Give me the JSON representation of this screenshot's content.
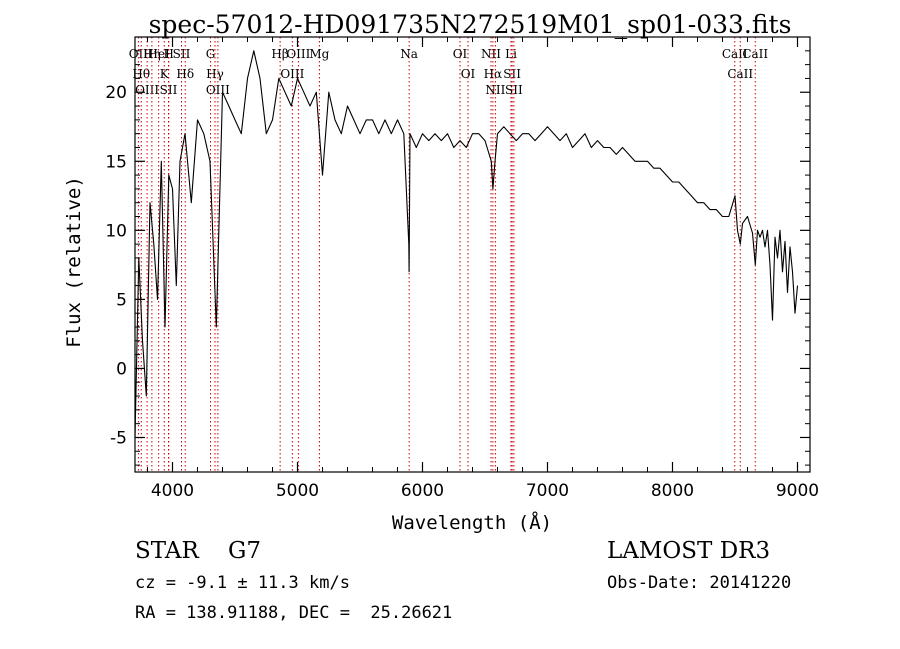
{
  "chart_data": {
    "type": "line",
    "title": "spec-57012-HD091735N272519M01_sp01-033.fits",
    "xlabel": "Wavelength (Å)",
    "ylabel": "Flux (relative)",
    "xlim": [
      3700,
      9100
    ],
    "ylim": [
      -7.5,
      24
    ],
    "xticks": [
      "4000",
      "5000",
      "6000",
      "7000",
      "8000",
      "9000"
    ],
    "yticks": [
      "-5",
      "0",
      "5",
      "10",
      "15",
      "20"
    ],
    "grid": false,
    "legend": "none",
    "line_color": "#000000",
    "marker_color": "#cc0000",
    "series": [
      {
        "x": [
          3700,
          3730,
          3760,
          3790,
          3820,
          3850,
          3880,
          3910,
          3940,
          3970,
          4000,
          4030,
          4060,
          4100,
          4150,
          4200,
          4250,
          4300,
          4350,
          4400,
          4450,
          4500,
          4550,
          4600,
          4650,
          4700,
          4750,
          4800,
          4850,
          4900,
          4950,
          5000,
          5050,
          5100,
          5150,
          5200,
          5250,
          5300,
          5350,
          5400,
          5450,
          5500,
          5550,
          5600,
          5650,
          5700,
          5750,
          5800,
          5850,
          5890,
          5893,
          5900,
          5950,
          6000,
          6050,
          6100,
          6150,
          6200,
          6250,
          6300,
          6350,
          6400,
          6450,
          6500,
          6550,
          6563,
          6580,
          6600,
          6650,
          6700,
          6750,
          6800,
          6850,
          6900,
          6950,
          7000,
          7050,
          7100,
          7150,
          7200,
          7250,
          7300,
          7350,
          7400,
          7450,
          7500,
          7550,
          7600,
          7650,
          7700,
          7750,
          7800,
          7850,
          7900,
          7950,
          8000,
          8050,
          8100,
          8150,
          8200,
          8250,
          8300,
          8350,
          8400,
          8450,
          8500,
          8520,
          8542,
          8560,
          8600,
          8640,
          8662,
          8680,
          8700,
          8720,
          8740,
          8760,
          8780,
          8800,
          8820,
          8840,
          8860,
          8880,
          8900,
          8920,
          8940,
          8960,
          8980,
          9000
        ],
        "y": [
          -5,
          8,
          2,
          -2,
          12,
          9,
          5,
          15,
          3,
          14,
          13,
          6,
          15,
          17,
          12,
          18,
          17,
          15,
          3,
          20,
          19,
          18,
          17,
          21,
          23,
          21,
          17,
          18,
          21,
          20,
          19,
          21,
          20,
          19,
          20,
          14,
          20,
          18,
          17,
          19,
          18,
          17,
          18,
          18,
          17,
          18,
          17,
          18,
          17,
          9,
          7,
          17,
          16,
          17,
          16.5,
          17,
          16.5,
          17,
          16,
          16.5,
          16,
          17,
          17,
          16.5,
          15,
          13,
          15,
          17,
          17.5,
          17,
          16.5,
          17,
          17,
          16.5,
          17,
          17.5,
          17,
          16.5,
          17,
          16,
          16.5,
          17,
          16,
          16.5,
          16,
          16,
          15.5,
          16,
          15.5,
          15,
          15,
          15,
          14.5,
          14.5,
          14,
          13.5,
          13.5,
          13,
          12.5,
          12,
          12,
          11.5,
          11.5,
          11,
          11,
          12.5,
          10,
          9,
          10.5,
          11,
          9.8,
          7.5,
          10,
          9.5,
          10,
          8.8,
          10,
          7.5,
          3.5,
          9.5,
          8,
          10,
          7,
          9.2,
          5.5,
          8.8,
          7,
          4,
          6
        ]
      }
    ],
    "line_markers": [
      {
        "x": 3727,
        "label": "OII"
      },
      {
        "x": 3750,
        "label": "Hθ"
      },
      {
        "x": 3797,
        "label": "OIII"
      },
      {
        "x": 3835,
        "label": "Hη"
      },
      {
        "x": 3889,
        "label": "HeI"
      },
      {
        "x": 3934,
        "label": "K"
      },
      {
        "x": 3968,
        "label": "SII"
      },
      {
        "x": 3970,
        "label": "H"
      },
      {
        "x": 4102,
        "label": "Hδ"
      },
      {
        "x": 4072,
        "label": "SII"
      },
      {
        "x": 4304,
        "label": "G"
      },
      {
        "x": 4340,
        "label": "Hγ"
      },
      {
        "x": 4363,
        "label": "OIII"
      },
      {
        "x": 4861,
        "label": "Hβ"
      },
      {
        "x": 4959,
        "label": "OIII"
      },
      {
        "x": 5007,
        "label": "OIII"
      },
      {
        "x": 5175,
        "label": "Mg"
      },
      {
        "x": 5893,
        "label": "Na"
      },
      {
        "x": 6300,
        "label": "OI"
      },
      {
        "x": 6364,
        "label": "OI"
      },
      {
        "x": 6548,
        "label": "NII"
      },
      {
        "x": 6563,
        "label": "Hα"
      },
      {
        "x": 6583,
        "label": "NII"
      },
      {
        "x": 6708,
        "label": "Li"
      },
      {
        "x": 6717,
        "label": "SII"
      },
      {
        "x": 6731,
        "label": "SII"
      },
      {
        "x": 8498,
        "label": "CaII"
      },
      {
        "x": 8542,
        "label": "CaII"
      },
      {
        "x": 8662,
        "label": "CaII"
      }
    ]
  },
  "info": {
    "class": "STAR    G7",
    "survey": "LAMOST DR3",
    "cz": "cz = -9.1 ± 11.3 km/s",
    "obs_date": "Obs-Date: 20141220",
    "coords": "RA = 138.91188, DEC =  25.26621"
  }
}
